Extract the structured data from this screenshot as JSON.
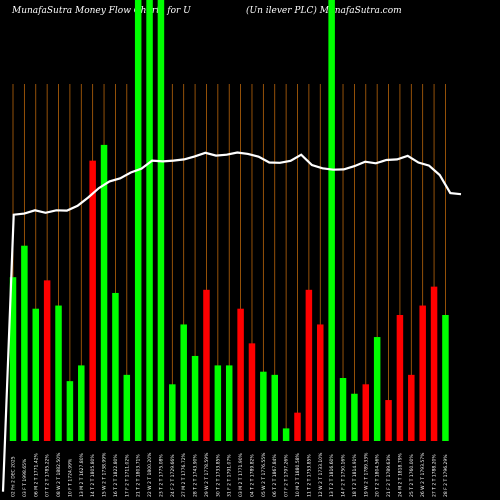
{
  "title_left": "MunafaSutra  Money Flow  Charts for U",
  "title_right": "(Un                                    ilever PLC) MunafaSutra.com",
  "colors": {
    "up": "#00ff00",
    "down": "#ff0000",
    "grid": "#b8650b",
    "line": "#ffffff",
    "background": "#000000"
  },
  "chart_data": {
    "type": "bar",
    "title": "MunafaSutra Money Flow Charts for U (Unilever PLC) MunafaSutra.com",
    "bars": [
      {
        "date": "02 Fri Jan 2025",
        "value": 52,
        "dir": "up"
      },
      {
        "date": "03 Fri Jan 2025",
        "value": 62,
        "dir": "up"
      },
      {
        "date": "06 Mon Jan 2025",
        "value": 42,
        "dir": "up"
      },
      {
        "date": "07 Tue Jan 2025",
        "value": 51,
        "dir": "down"
      },
      {
        "date": "08 Wed Jan 2025",
        "value": 43,
        "dir": "up"
      },
      {
        "date": "10 Fri Jan 2025",
        "value": 19,
        "dir": "up"
      },
      {
        "date": "13 Mon Jan 2025",
        "value": 24,
        "dir": "up"
      },
      {
        "date": "14 Tue Jan 2025",
        "value": 89,
        "dir": "down"
      },
      {
        "date": "15 Wed Jan 2025",
        "value": 94,
        "dir": "up"
      },
      {
        "date": "16 Thu Jan 2025",
        "value": 47,
        "dir": "up"
      },
      {
        "date": "17 Fri Jan 2025",
        "value": 21,
        "dir": "up"
      },
      {
        "date": "21 Tue Jan 2025",
        "value": 140,
        "dir": "up"
      },
      {
        "date": "22 Wed Jan 2025",
        "value": 140,
        "dir": "up"
      },
      {
        "date": "23 Thu Jan 2025",
        "value": 140,
        "dir": "up"
      },
      {
        "date": "24 Fri Jan 2025",
        "value": 18,
        "dir": "up"
      },
      {
        "date": "27 Mon Jan 2025",
        "value": 37,
        "dir": "up"
      },
      {
        "date": "28 Tue Jan 2025",
        "value": 27,
        "dir": "up"
      },
      {
        "date": "29 Wed Jan 2025",
        "value": 48,
        "dir": "down"
      },
      {
        "date": "30 Thu Jan 2025",
        "value": 24,
        "dir": "up"
      },
      {
        "date": "31 Fri Jan 2025",
        "value": 24,
        "dir": "up"
      },
      {
        "date": "03 Mon Feb 2025",
        "value": 42,
        "dir": "down"
      },
      {
        "date": "04 Tue Feb 2025",
        "value": 31,
        "dir": "down"
      },
      {
        "date": "05 Wed Feb 2025",
        "value": 22,
        "dir": "up"
      },
      {
        "date": "06 Thu Feb 2025",
        "value": 21,
        "dir": "up"
      },
      {
        "date": "07 Fri Feb 2025",
        "value": 4,
        "dir": "up"
      },
      {
        "date": "10 Mon Feb 2025",
        "value": 9,
        "dir": "down"
      },
      {
        "date": "11 Tue Feb 2025",
        "value": 48,
        "dir": "down"
      },
      {
        "date": "12 Wed Feb 2025",
        "value": 37,
        "dir": "down"
      },
      {
        "date": "13 Thu Feb 2025",
        "value": 140,
        "dir": "up"
      },
      {
        "date": "14 Fri Feb 2025",
        "value": 20,
        "dir": "up"
      },
      {
        "date": "18 Tue Feb 2025",
        "value": 15,
        "dir": "up"
      },
      {
        "date": "19 Wed Feb 2025",
        "value": 18,
        "dir": "down"
      },
      {
        "date": "20 Thu Feb 2025",
        "value": 33,
        "dir": "up"
      },
      {
        "date": "21 Fri Feb 2025",
        "value": 13,
        "dir": "down"
      },
      {
        "date": "24 Mon Feb 2025",
        "value": 40,
        "dir": "down"
      },
      {
        "date": "25 Tue Feb 2025",
        "value": 21,
        "dir": "down"
      },
      {
        "date": "26 Wed Feb 2025",
        "value": 43,
        "dir": "down"
      },
      {
        "date": "27 Thu Feb 2025",
        "value": 49,
        "dir": "down"
      },
      {
        "date": "28 Fri Feb 2025",
        "value": 40,
        "dir": "up"
      }
    ],
    "xlabels": [
      "02 Fri 2 DEC 2025",
      "03 F T 1998.65%",
      "06 M 2 T 1771.42%",
      "07 T 2 T 1785.22%",
      "08 W 2 T 1882.50%",
      "10 F T 1724.99%",
      "13 M 2 T 1627.80%",
      "14 T 2 T 1805.80%",
      "15 W 2 T 1738.99%",
      "16 T 2 T 1822.80%",
      "17 F 2 T 1711.02%",
      "21 T 2 T 1803.71%",
      "22 W 2 T 1800.20%",
      "23 T 2 T 1775.08%",
      "24 F 2 T 1729.66%",
      "27 M 2 T 1776.72%",
      "28 T 2 T 1743.90%",
      "29 W 2 T 1778.59%",
      "30 T 2 T 1733.85%",
      "31 F 2 T 1791.07%",
      "03 M 2 T 1771.90%",
      "04 T 2 T 1789.82%",
      "05 W 2 T 1776.55%",
      "06 T 2 T 1867.84%",
      "07 F 2 T 1797.26%",
      "10 M 2 T 1880.58%",
      "11 T 2 T 1753.85%",
      "12 W 2 T 1733.10%",
      "13 T 2 T 1816.60%",
      "14 F 2 T 1750.16%",
      "18 T 2 T 1814.91%",
      "19 W 2 T 1789.33%",
      "20 T 2 T 1804.56%",
      "21 F 2 T 1789.63%",
      "24 M 2 T 1818.79%",
      "25 T 2 T 1760.00%",
      "26 W 2 T 1793.57%",
      "27 T 2 T 1788.20%",
      "28 F 2 T 1796.29%"
    ],
    "line": [
      3.0,
      102.7,
      103.1,
      104.3,
      103.4,
      104.3,
      104.2,
      105.9,
      108.9,
      112.3,
      114.7,
      115.8,
      117.9,
      119.3,
      122.2,
      121.9,
      122.2,
      122.6,
      123.7,
      125.0,
      124.0,
      124.3,
      125.1,
      124.6,
      123.6,
      121.5,
      121.4,
      122.1,
      124.3,
      120.6,
      119.4,
      118.9,
      119.0,
      120.2,
      121.8,
      121.2,
      122.4,
      122.6,
      123.9,
      121.5,
      120.4,
      117.0,
      110.5,
      110.1
    ],
    "ylim": [
      0,
      140
    ]
  }
}
